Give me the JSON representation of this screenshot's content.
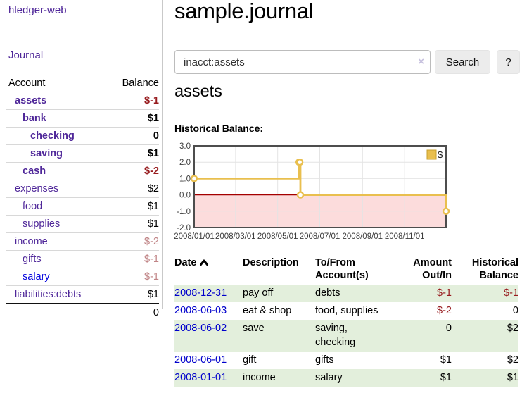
{
  "theme": {
    "purple": "#4f2799",
    "link_blue": "#0000dd",
    "negative": "#971b1e",
    "negative_muted": "#c08486",
    "row_green": "#e3efdc",
    "chart_gold": "#e9bf4e",
    "chart_negative_bg": "#fcdcdc",
    "chart_zero_line": "#a40000"
  },
  "sidebar": {
    "brand": "hledger-web",
    "journal_label": "Journal",
    "accounts_table": {
      "headers": {
        "account": "Account",
        "balance": "Balance"
      },
      "rows": [
        {
          "name": "assets",
          "depth": 1,
          "bold": true,
          "balance": "$-1",
          "balance_style": "negative"
        },
        {
          "name": "bank",
          "depth": 2,
          "bold": true,
          "balance": "$1",
          "balance_style": "normal"
        },
        {
          "name": "checking",
          "depth": 3,
          "bold": true,
          "balance": "0",
          "balance_style": "normal"
        },
        {
          "name": "saving",
          "depth": 3,
          "bold": true,
          "balance": "$1",
          "balance_style": "normal"
        },
        {
          "name": "cash",
          "depth": 2,
          "bold": true,
          "balance": "$-2",
          "balance_style": "negative"
        },
        {
          "name": "expenses",
          "depth": 1,
          "bold": false,
          "balance": "$2",
          "balance_style": "normal"
        },
        {
          "name": "food",
          "depth": 2,
          "bold": false,
          "balance": "$1",
          "balance_style": "normal"
        },
        {
          "name": "supplies",
          "depth": 2,
          "bold": false,
          "balance": "$1",
          "balance_style": "normal"
        },
        {
          "name": "income",
          "depth": 1,
          "bold": false,
          "balance": "$-2",
          "balance_style": "negative_muted"
        },
        {
          "name": "gifts",
          "depth": 2,
          "bold": false,
          "balance": "$-1",
          "balance_style": "negative_muted"
        },
        {
          "name": "salary",
          "depth": 2,
          "bold": false,
          "name_style": "blue",
          "balance": "$-1",
          "balance_style": "negative_muted"
        },
        {
          "name": "liabilities:debts",
          "depth": 1,
          "bold": false,
          "balance": "$1",
          "balance_style": "normal"
        }
      ],
      "total": "0"
    }
  },
  "header": {
    "title": "sample.journal"
  },
  "search": {
    "value": "inacct:assets",
    "clear_icon": "×",
    "button_label": "Search",
    "help_label": "?"
  },
  "account_page": {
    "heading": "assets",
    "chart_label": "Historical Balance:"
  },
  "chart_data": {
    "type": "line",
    "title": "Historical Balance:",
    "step": true,
    "series": [
      {
        "name": "$",
        "points": [
          [
            "2008-01-01",
            1
          ],
          [
            "2008-06-01",
            2
          ],
          [
            "2008-06-02",
            2
          ],
          [
            "2008-06-03",
            0
          ],
          [
            "2008-12-31",
            -1
          ]
        ]
      }
    ],
    "x_range": [
      "2008-01-01",
      "2008-12-31"
    ],
    "ylim": [
      -2,
      3
    ],
    "y_ticks": [
      3.0,
      2.0,
      1.0,
      0.0,
      -1.0,
      -2.0
    ],
    "x_ticks": [
      "2008/01/01",
      "2008/03/01",
      "2008/05/01",
      "2008/07/01",
      "2008/09/01",
      "2008/11/01"
    ],
    "grid": true,
    "legend_position": "top-right",
    "negative_region_shaded": true
  },
  "register": {
    "headers": {
      "date": "Date",
      "sort_icon": "chevron-up-icon",
      "description": "Description",
      "account": "To/From Account(s)",
      "amount": "Amount Out/In",
      "balance": "Historical Balance"
    },
    "rows": [
      {
        "date": "2008-12-31",
        "description": "pay off",
        "accounts": "debts",
        "amount": "$-1",
        "amount_negative": true,
        "balance": "$-1",
        "balance_negative": true
      },
      {
        "date": "2008-06-03",
        "description": "eat & shop",
        "accounts": "food, supplies",
        "amount": "$-2",
        "amount_negative": true,
        "balance": "0",
        "balance_negative": false
      },
      {
        "date": "2008-06-02",
        "description": "save",
        "accounts": "saving, checking",
        "amount": "0",
        "amount_negative": false,
        "balance": "$2",
        "balance_negative": false
      },
      {
        "date": "2008-06-01",
        "description": "gift",
        "accounts": "gifts",
        "amount": "$1",
        "amount_negative": false,
        "balance": "$2",
        "balance_negative": false
      },
      {
        "date": "2008-01-01",
        "description": "income",
        "accounts": "salary",
        "amount": "$1",
        "amount_negative": false,
        "balance": "$1",
        "balance_negative": false
      }
    ]
  }
}
